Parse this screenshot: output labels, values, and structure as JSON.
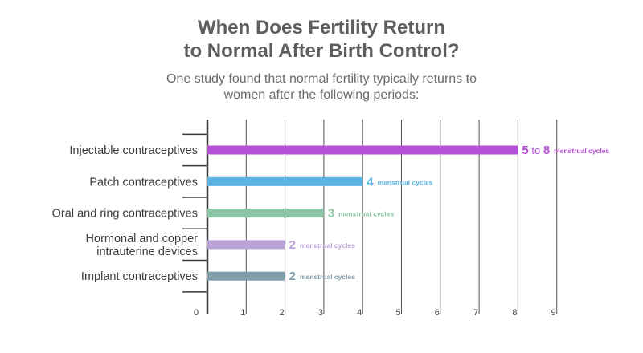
{
  "page": {
    "title_line1": "When Does Fertility Return",
    "title_line2": "to Normal After Birth Control?",
    "subtitle_line1": "One study found that normal fertility typically returns to",
    "subtitle_line2": "women after the following periods:"
  },
  "chart_data": {
    "type": "bar",
    "orientation": "horizontal",
    "title": "When Does Fertility Return to Normal After Birth Control?",
    "subtitle": "One study found that normal fertility typically returns to women after the following periods:",
    "categories": [
      [
        "Injectable contraceptives"
      ],
      [
        "Patch contraceptives"
      ],
      [
        "Oral and ring contraceptives"
      ],
      [
        "Hormonal and copper",
        "intrauterine devices"
      ],
      [
        "Implant contraceptives"
      ]
    ],
    "values": [
      8,
      4,
      3,
      2,
      2
    ],
    "value_labels": [
      {
        "parts": [
          "5",
          " to ",
          "8"
        ],
        "unit": "menstrual cycles"
      },
      {
        "parts": [
          "4"
        ],
        "unit": "menstrual cycles"
      },
      {
        "parts": [
          "3"
        ],
        "unit": "menstrual cycles"
      },
      {
        "parts": [
          "2"
        ],
        "unit": "menstrual cycles"
      },
      {
        "parts": [
          "2"
        ],
        "unit": "menstrual cycles"
      }
    ],
    "colors": [
      "#b54fd6",
      "#5ab3e0",
      "#8cc5a4",
      "#b9a2d6",
      "#7f9daa"
    ],
    "xlim": [
      0,
      9
    ],
    "xticks": [
      0,
      1,
      2,
      3,
      4,
      5,
      6,
      7,
      8,
      9
    ],
    "grid": true,
    "xlabel": "",
    "ylabel": ""
  }
}
